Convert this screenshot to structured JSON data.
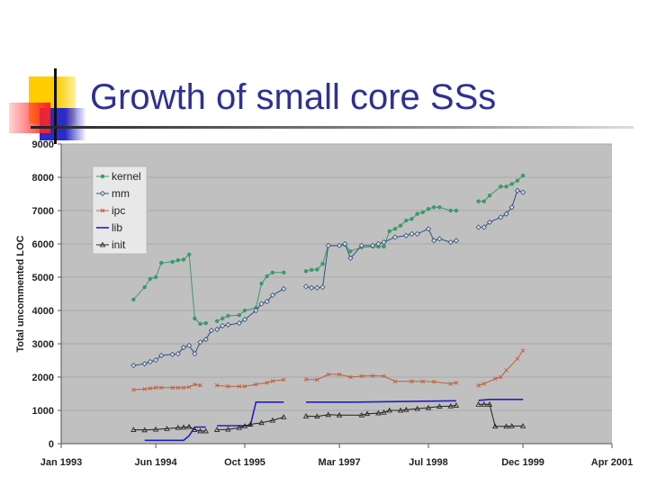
{
  "slide": {
    "title": "Growth of small core SSs"
  },
  "colors": {
    "title": "#2e3192",
    "plot_bg": "#c0c0c0",
    "kernel": "#3a9a6a",
    "mm": "#2f4f7f",
    "ipc": "#c0603a",
    "lib": "#2020c0",
    "init": "#202020"
  },
  "chart_data": {
    "type": "line",
    "title": "",
    "xlabel": "",
    "ylabel": "Total uncommented LOC",
    "ylim": [
      0,
      9000
    ],
    "yticks": [
      "0",
      "1000",
      "2000",
      "3000",
      "4000",
      "5000",
      "6000",
      "7000",
      "8000",
      "9000"
    ],
    "xlim": [
      "1993-01",
      "2001-04"
    ],
    "xticks": [
      {
        "date": "1993-01",
        "label": "Jan 1993"
      },
      {
        "date": "1994-06",
        "label": "Jun 1994"
      },
      {
        "date": "1995-10",
        "label": "Oct 1995"
      },
      {
        "date": "1997-03",
        "label": "Mar 1997"
      },
      {
        "date": "1998-07",
        "label": "Jul 1998"
      },
      {
        "date": "1999-12",
        "label": "Dec 1999"
      },
      {
        "date": "2001-04",
        "label": "Apr 2001"
      }
    ],
    "grid": true,
    "legend": "top-left",
    "series": [
      {
        "name": "kernel",
        "marker": "dot",
        "segments": [
          [
            [
              "1994-02",
              4330
            ],
            [
              "1994-04",
              4700
            ],
            [
              "1994-05",
              4950
            ],
            [
              "1994-06",
              5000
            ],
            [
              "1994-07",
              5430
            ],
            [
              "1994-09",
              5460
            ],
            [
              "1994-10",
              5510
            ],
            [
              "1994-11",
              5530
            ],
            [
              "1994-12",
              5680
            ],
            [
              "1995-01",
              3760
            ],
            [
              "1995-02",
              3600
            ],
            [
              "1995-03",
              3620
            ]
          ],
          [
            [
              "1995-05",
              3680
            ],
            [
              "1995-06",
              3760
            ],
            [
              "1995-07",
              3840
            ],
            [
              "1995-09",
              3860
            ],
            [
              "1995-10",
              4000
            ],
            [
              "1995-12",
              4080
            ],
            [
              "1996-01",
              4810
            ],
            [
              "1996-02",
              5030
            ],
            [
              "1996-03",
              5140
            ],
            [
              "1996-05",
              5140
            ]
          ],
          [
            [
              "1996-09",
              5180
            ],
            [
              "1996-10",
              5220
            ],
            [
              "1996-11",
              5230
            ],
            [
              "1996-12",
              5400
            ],
            [
              "1997-01",
              5950
            ],
            [
              "1997-03",
              5950
            ],
            [
              "1997-04",
              5970
            ],
            [
              "1997-05",
              5780
            ],
            [
              "1997-07",
              5900
            ],
            [
              "1997-09",
              5920
            ],
            [
              "1997-10",
              5920
            ],
            [
              "1997-11",
              5920
            ],
            [
              "1997-12",
              6380
            ],
            [
              "1998-01",
              6450
            ],
            [
              "1998-02",
              6550
            ],
            [
              "1998-03",
              6700
            ],
            [
              "1998-04",
              6750
            ],
            [
              "1998-05",
              6900
            ],
            [
              "1998-06",
              6950
            ],
            [
              "1998-07",
              7050
            ],
            [
              "1998-08",
              7100
            ],
            [
              "1998-09",
              7100
            ],
            [
              "1998-11",
              7000
            ],
            [
              "1998-12",
              7000
            ]
          ],
          [
            [
              "1999-04",
              7280
            ],
            [
              "1999-05",
              7280
            ],
            [
              "1999-06",
              7450
            ],
            [
              "1999-08",
              7720
            ],
            [
              "1999-09",
              7720
            ],
            [
              "1999-10",
              7800
            ],
            [
              "1999-11",
              7900
            ],
            [
              "1999-12",
              8050
            ]
          ]
        ]
      },
      {
        "name": "mm",
        "marker": "diamond",
        "segments": [
          [
            [
              "1994-02",
              2350
            ],
            [
              "1994-04",
              2400
            ],
            [
              "1994-05",
              2460
            ],
            [
              "1994-06",
              2510
            ],
            [
              "1994-07",
              2650
            ],
            [
              "1994-09",
              2680
            ],
            [
              "1994-10",
              2700
            ],
            [
              "1994-11",
              2890
            ],
            [
              "1994-12",
              2950
            ],
            [
              "1995-01",
              2700
            ],
            [
              "1995-02",
              3050
            ],
            [
              "1995-03",
              3130
            ],
            [
              "1995-04",
              3400
            ]
          ],
          [
            [
              "1995-05",
              3430
            ],
            [
              "1995-06",
              3540
            ],
            [
              "1995-07",
              3570
            ],
            [
              "1995-09",
              3620
            ],
            [
              "1995-10",
              3730
            ],
            [
              "1995-12",
              4000
            ],
            [
              "1996-01",
              4200
            ],
            [
              "1996-02",
              4270
            ],
            [
              "1996-03",
              4460
            ],
            [
              "1996-05",
              4650
            ]
          ],
          [
            [
              "1996-09",
              4720
            ],
            [
              "1996-10",
              4680
            ],
            [
              "1996-11",
              4680
            ],
            [
              "1996-12",
              4700
            ],
            [
              "1997-01",
              5950
            ],
            [
              "1997-03",
              5950
            ],
            [
              "1997-04",
              6000
            ],
            [
              "1997-05",
              5570
            ],
            [
              "1997-07",
              5950
            ],
            [
              "1997-09",
              5950
            ],
            [
              "1997-10",
              6000
            ],
            [
              "1997-11",
              6050
            ],
            [
              "1998-01",
              6200
            ],
            [
              "1998-03",
              6250
            ],
            [
              "1998-04",
              6300
            ],
            [
              "1998-05",
              6300
            ],
            [
              "1998-07",
              6450
            ],
            [
              "1998-08",
              6100
            ],
            [
              "1998-09",
              6150
            ],
            [
              "1998-11",
              6050
            ],
            [
              "1998-12",
              6100
            ]
          ],
          [
            [
              "1999-04",
              6500
            ],
            [
              "1999-05",
              6500
            ],
            [
              "1999-06",
              6650
            ],
            [
              "1999-08",
              6800
            ],
            [
              "1999-09",
              6900
            ],
            [
              "1999-10",
              7100
            ],
            [
              "1999-11",
              7600
            ],
            [
              "1999-12",
              7550
            ]
          ]
        ]
      },
      {
        "name": "ipc",
        "marker": "x",
        "segments": [
          [
            [
              "1994-02",
              1620
            ],
            [
              "1994-04",
              1640
            ],
            [
              "1994-05",
              1660
            ],
            [
              "1994-06",
              1680
            ],
            [
              "1994-07",
              1680
            ],
            [
              "1994-09",
              1680
            ],
            [
              "1994-10",
              1680
            ],
            [
              "1994-11",
              1680
            ],
            [
              "1994-12",
              1700
            ],
            [
              "1995-01",
              1780
            ],
            [
              "1995-02",
              1750
            ]
          ],
          [
            [
              "1995-05",
              1750
            ],
            [
              "1995-07",
              1720
            ],
            [
              "1995-09",
              1720
            ],
            [
              "1995-10",
              1720
            ],
            [
              "1995-12",
              1780
            ],
            [
              "1996-02",
              1830
            ],
            [
              "1996-03",
              1880
            ],
            [
              "1996-05",
              1920
            ]
          ],
          [
            [
              "1996-09",
              1930
            ],
            [
              "1996-11",
              1920
            ],
            [
              "1997-01",
              2080
            ],
            [
              "1997-03",
              2080
            ],
            [
              "1997-05",
              2000
            ],
            [
              "1997-07",
              2030
            ],
            [
              "1997-09",
              2040
            ],
            [
              "1997-11",
              2030
            ],
            [
              "1998-01",
              1870
            ],
            [
              "1998-04",
              1870
            ],
            [
              "1998-06",
              1870
            ],
            [
              "1998-08",
              1860
            ],
            [
              "1998-11",
              1800
            ],
            [
              "1998-12",
              1830
            ]
          ],
          [
            [
              "1999-04",
              1750
            ],
            [
              "1999-05",
              1800
            ],
            [
              "1999-07",
              1950
            ],
            [
              "1999-08",
              2000
            ],
            [
              "1999-09",
              2200
            ],
            [
              "1999-11",
              2550
            ],
            [
              "1999-12",
              2800
            ]
          ]
        ]
      },
      {
        "name": "lib",
        "marker": "none",
        "segments": [
          [
            [
              "1994-04",
              100
            ],
            [
              "1994-11",
              100
            ],
            [
              "1994-12",
              240
            ],
            [
              "1995-01",
              500
            ],
            [
              "1995-03",
              500
            ]
          ],
          [
            [
              "1995-05",
              540
            ],
            [
              "1995-07",
              540
            ],
            [
              "1995-11",
              540
            ],
            [
              "1995-12",
              1250
            ],
            [
              "1996-05",
              1250
            ]
          ],
          [
            [
              "1996-09",
              1250
            ],
            [
              "1997-06",
              1250
            ],
            [
              "1998-12",
              1290
            ]
          ],
          [
            [
              "1999-04",
              1300
            ],
            [
              "1999-06",
              1330
            ],
            [
              "1999-12",
              1330
            ]
          ]
        ]
      },
      {
        "name": "init",
        "marker": "triangle",
        "segments": [
          [
            [
              "1994-02",
              420
            ],
            [
              "1994-04",
              410
            ],
            [
              "1994-06",
              430
            ],
            [
              "1994-08",
              450
            ],
            [
              "1994-10",
              480
            ],
            [
              "1994-11",
              490
            ],
            [
              "1994-12",
              510
            ],
            [
              "1995-01",
              420
            ],
            [
              "1995-02",
              380
            ],
            [
              "1995-03",
              380
            ]
          ],
          [
            [
              "1995-05",
              420
            ],
            [
              "1995-07",
              430
            ],
            [
              "1995-09",
              480
            ],
            [
              "1995-10",
              530
            ],
            [
              "1995-11",
              580
            ],
            [
              "1996-01",
              630
            ],
            [
              "1996-03",
              700
            ],
            [
              "1996-05",
              800
            ]
          ],
          [
            [
              "1996-09",
              830
            ],
            [
              "1996-11",
              820
            ],
            [
              "1997-01",
              870
            ],
            [
              "1997-03",
              860
            ],
            [
              "1997-07",
              860
            ],
            [
              "1997-08",
              900
            ],
            [
              "1997-10",
              920
            ],
            [
              "1997-11",
              940
            ],
            [
              "1997-12",
              1000
            ],
            [
              "1998-02",
              1000
            ],
            [
              "1998-03",
              1020
            ],
            [
              "1998-05",
              1050
            ],
            [
              "1998-07",
              1080
            ],
            [
              "1998-09",
              1120
            ],
            [
              "1998-11",
              1130
            ],
            [
              "1998-12",
              1150
            ]
          ],
          [
            [
              "1999-04",
              1180
            ],
            [
              "1999-05",
              1180
            ],
            [
              "1999-06",
              1180
            ],
            [
              "1999-07",
              520
            ],
            [
              "1999-09",
              520
            ],
            [
              "1999-10",
              530
            ],
            [
              "1999-12",
              530
            ]
          ]
        ]
      }
    ]
  }
}
